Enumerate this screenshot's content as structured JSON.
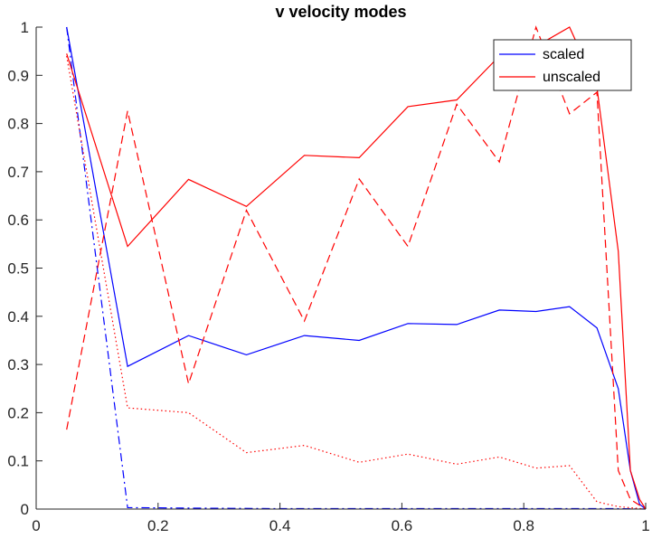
{
  "chart_data": {
    "type": "line",
    "title": "v velocity modes",
    "xlabel": "",
    "ylabel": "",
    "xlim": [
      0,
      1
    ],
    "ylim": [
      0,
      1
    ],
    "xticks": [
      "0",
      "0.2",
      "0.4",
      "0.6",
      "0.8",
      "1"
    ],
    "yticks": [
      "0",
      "0.1",
      "0.2",
      "0.3",
      "0.4",
      "0.5",
      "0.6",
      "0.7",
      "0.8",
      "0.9",
      "1"
    ],
    "xtick_values": [
      0,
      0.2,
      0.4,
      0.6,
      0.8,
      1
    ],
    "ytick_values": [
      0,
      0.1,
      0.2,
      0.3,
      0.4,
      0.5,
      0.6,
      0.7,
      0.8,
      0.9,
      1
    ],
    "grid": false,
    "legend_position": "top-right",
    "legend": [
      {
        "label": "scaled",
        "color": "#0000ff"
      },
      {
        "label": "unscaled",
        "color": "#ff0000"
      }
    ],
    "series": [
      {
        "color": "#0000ff",
        "style": "solid",
        "points": [
          [
            0.05,
            1.0
          ],
          [
            0.15,
            0.296
          ],
          [
            0.25,
            0.36
          ],
          [
            0.345,
            0.32
          ],
          [
            0.44,
            0.36
          ],
          [
            0.53,
            0.35
          ],
          [
            0.61,
            0.385
          ],
          [
            0.69,
            0.383
          ],
          [
            0.76,
            0.413
          ],
          [
            0.82,
            0.41
          ],
          [
            0.875,
            0.42
          ],
          [
            0.92,
            0.376
          ],
          [
            0.955,
            0.25
          ],
          [
            0.975,
            0.08
          ],
          [
            0.99,
            0.01
          ],
          [
            1.0,
            0.0
          ]
        ]
      },
      {
        "color": "#0000ff",
        "style": "dashdot",
        "points": [
          [
            0.05,
            1.0
          ],
          [
            0.15,
            0.003
          ],
          [
            0.25,
            0.002
          ],
          [
            0.4,
            0.001
          ],
          [
            0.6,
            0.001
          ],
          [
            0.8,
            0.001
          ],
          [
            0.95,
            0.001
          ],
          [
            1.0,
            0.0
          ]
        ]
      },
      {
        "color": "#ff0000",
        "style": "solid",
        "points": [
          [
            0.05,
            0.945
          ],
          [
            0.15,
            0.545
          ],
          [
            0.25,
            0.684
          ],
          [
            0.345,
            0.628
          ],
          [
            0.44,
            0.734
          ],
          [
            0.53,
            0.729
          ],
          [
            0.61,
            0.835
          ],
          [
            0.69,
            0.849
          ],
          [
            0.76,
            0.94
          ],
          [
            0.82,
            0.96
          ],
          [
            0.875,
            1.0
          ],
          [
            0.92,
            0.875
          ],
          [
            0.955,
            0.535
          ],
          [
            0.975,
            0.08
          ],
          [
            0.99,
            0.02
          ],
          [
            1.0,
            0.0
          ]
        ]
      },
      {
        "color": "#ff0000",
        "style": "dashed",
        "points": [
          [
            0.05,
            0.165
          ],
          [
            0.15,
            0.826
          ],
          [
            0.25,
            0.26
          ],
          [
            0.345,
            0.62
          ],
          [
            0.44,
            0.39
          ],
          [
            0.53,
            0.685
          ],
          [
            0.61,
            0.545
          ],
          [
            0.69,
            0.84
          ],
          [
            0.76,
            0.72
          ],
          [
            0.82,
            1.0
          ],
          [
            0.875,
            0.82
          ],
          [
            0.92,
            0.865
          ],
          [
            0.955,
            0.08
          ],
          [
            0.975,
            0.02
          ],
          [
            1.0,
            0.0
          ]
        ]
      },
      {
        "color": "#ff0000",
        "style": "dotted",
        "points": [
          [
            0.05,
            0.94
          ],
          [
            0.15,
            0.21
          ],
          [
            0.25,
            0.2
          ],
          [
            0.345,
            0.117
          ],
          [
            0.44,
            0.132
          ],
          [
            0.53,
            0.097
          ],
          [
            0.61,
            0.114
          ],
          [
            0.69,
            0.093
          ],
          [
            0.76,
            0.108
          ],
          [
            0.82,
            0.085
          ],
          [
            0.875,
            0.09
          ],
          [
            0.92,
            0.015
          ],
          [
            0.955,
            0.005
          ],
          [
            1.0,
            0.0
          ]
        ]
      }
    ]
  }
}
